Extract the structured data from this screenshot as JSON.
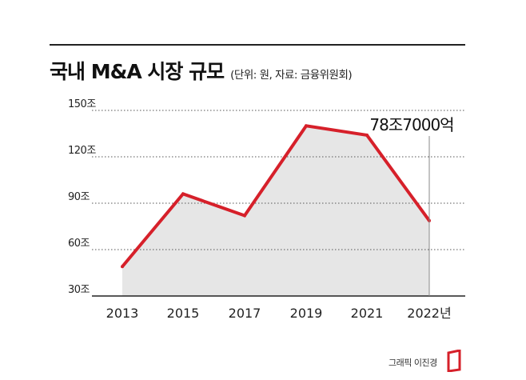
{
  "header": {
    "title": "국내 M&A 시장 규모",
    "subtitle": "(단위: 원, 자료: 금융위원회)"
  },
  "footer": {
    "credit": "그래픽 이진경"
  },
  "colors": {
    "line": "#d6202a",
    "area": "#e6e6e6",
    "grid": "#555555",
    "text": "#222222"
  },
  "chart_data": {
    "type": "area",
    "x_labels": [
      "2013",
      "2015",
      "2017",
      "2019",
      "2021",
      "2022년"
    ],
    "x": [
      2013,
      2015,
      2017,
      2019,
      2021,
      2022
    ],
    "series": [
      {
        "values": [
          49,
          96,
          82,
          140,
          134,
          78.7
        ]
      }
    ],
    "y_ticks": [
      {
        "value": 150,
        "label": "150조"
      },
      {
        "value": 120,
        "label": "120조"
      },
      {
        "value": 90,
        "label": "90조"
      },
      {
        "value": 60,
        "label": "60조"
      },
      {
        "value": 30,
        "label": "30조"
      }
    ],
    "ylim": [
      30,
      150
    ],
    "annotation": {
      "x": 2022,
      "label": "78조7000억"
    },
    "grid": true
  }
}
